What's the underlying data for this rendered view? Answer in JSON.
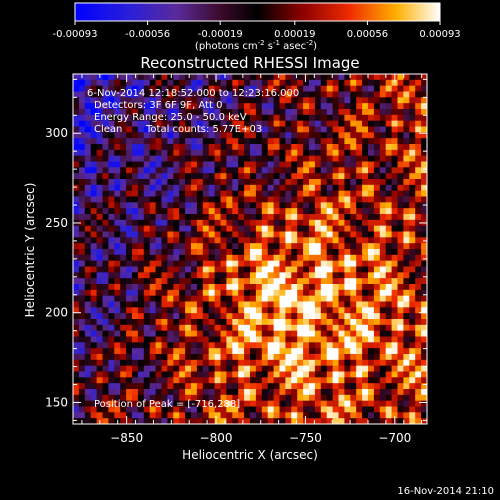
{
  "chart_data": {
    "type": "heatmap",
    "title": "Reconstructed RHESSI Image",
    "xlabel": "Heliocentric X (arcsec)",
    "ylabel": "Heliocentric Y (arcsec)",
    "xlim": [
      -880,
      -682
    ],
    "ylim": [
      138,
      333
    ],
    "xticks": [
      -850,
      -800,
      -750,
      -700
    ],
    "yticks": [
      150,
      200,
      250,
      300
    ],
    "colorbar": {
      "ticks": [
        "-0.00093",
        "-0.00056",
        "-0.00019",
        "0.00019",
        "0.00056",
        "0.00093"
      ],
      "label": "(photons cm",
      "label_exp1": "-2",
      "label_mid": " s",
      "label_exp2": "-1",
      "label_mid2": " asec",
      "label_exp3": "-2",
      "label_end": ")",
      "range": [
        -0.00093,
        0.00093
      ]
    },
    "annotations": {
      "time": "6-Nov-2014 12:18:52.000 to 12:23:16.000",
      "detectors": "Detectors: 3F 6F 9F, Att 0",
      "energy": "Energy Range: 25.0 - 50.0 keV",
      "method": "Clean",
      "counts": "Total counts: 5.77E+03",
      "peak": "Position of Peak = [-716,288]"
    },
    "peak_position": [
      -716,
      288
    ],
    "timestamp": "16-Nov-2014 21:10"
  }
}
